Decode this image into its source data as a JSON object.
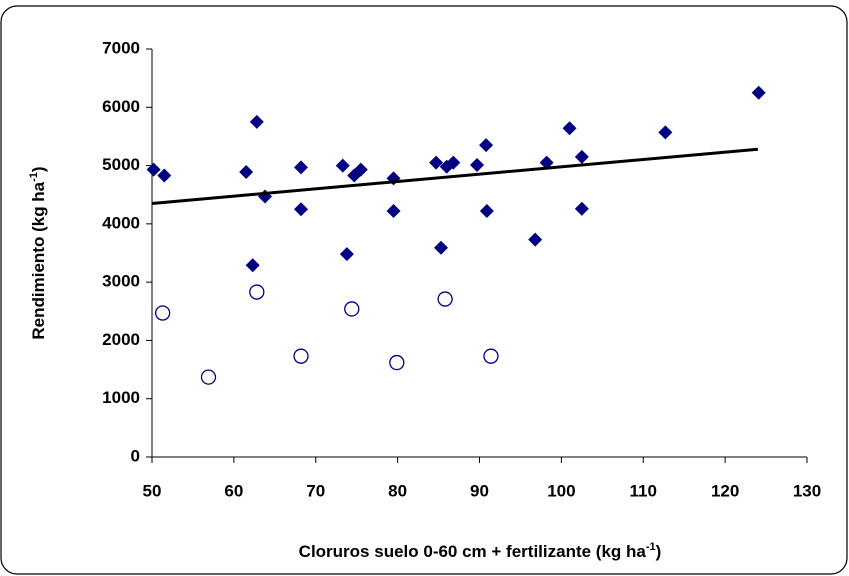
{
  "chart_data": {
    "type": "scatter",
    "x_label": [
      "Cloruros suelo 0-60 cm + fertilizante (kg ha",
      "-1",
      ")"
    ],
    "y_label": [
      "Rendimiento (kg ha",
      "-1",
      ")"
    ],
    "xlim": [
      50,
      130
    ],
    "xticks": [
      50,
      60,
      70,
      80,
      90,
      100,
      110,
      120,
      130
    ],
    "ylim": [
      0,
      7000
    ],
    "yticks": [
      0,
      1000,
      2000,
      3000,
      4000,
      5000,
      6000,
      7000
    ],
    "grid": false,
    "series": [
      {
        "marker": "diamond",
        "color": "#000080",
        "x": [
          50.2,
          51.5,
          61.5,
          62.3,
          62.8,
          63.8,
          68.2,
          68.2,
          73.3,
          73.8,
          74.7,
          75.5,
          79.5,
          79.5,
          84.7,
          85.3,
          86,
          86.8,
          89.7,
          90.8,
          90.9,
          96.8,
          98.2,
          101,
          102.5,
          102.5,
          112.7,
          124.1
        ],
        "values": [
          4930,
          4830,
          4890,
          3290,
          5750,
          4470,
          4970,
          4250,
          5000,
          3480,
          4830,
          4930,
          4780,
          4220,
          5050,
          3590,
          4980,
          5050,
          5010,
          5350,
          4220,
          3730,
          5050,
          5640,
          5150,
          4260,
          5570,
          6250
        ]
      },
      {
        "marker": "circle",
        "color": "#000080",
        "x": [
          51.3,
          56.9,
          62.8,
          68.2,
          74.4,
          79.9,
          85.8,
          91.4
        ],
        "values": [
          2470,
          1370,
          2830,
          1730,
          2540,
          1620,
          2710,
          1730
        ]
      },
      {
        "marker": "line",
        "color": "#000000",
        "x": [
          50,
          124
        ],
        "values": [
          4350,
          5280
        ]
      }
    ]
  }
}
